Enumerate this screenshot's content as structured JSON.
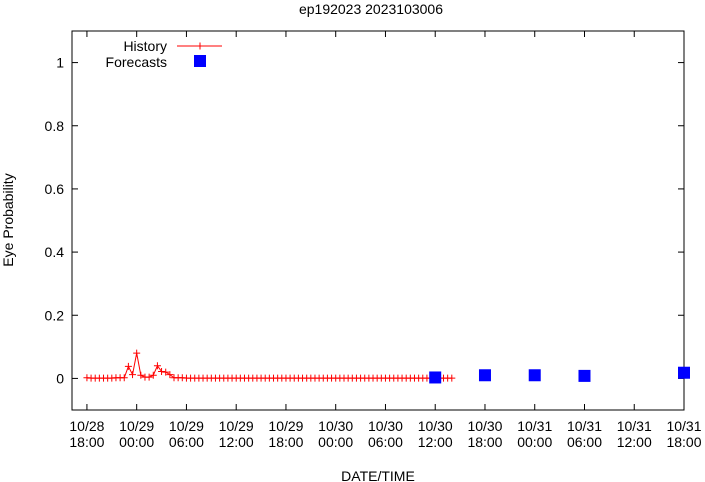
{
  "chart_data": {
    "type": "scatter",
    "title": "ep192023 2023103006",
    "xlabel": "DATE/TIME",
    "ylabel": "Eye Probability",
    "x_unit": "hours since 10/28 18:00",
    "xlim": [
      -1.8,
      72
    ],
    "ylim": [
      -0.1,
      1.1
    ],
    "x_ticks": [
      {
        "x": 0,
        "line1": "10/28",
        "line2": "18:00"
      },
      {
        "x": 6,
        "line1": "10/29",
        "line2": "00:00"
      },
      {
        "x": 12,
        "line1": "10/29",
        "line2": "06:00"
      },
      {
        "x": 18,
        "line1": "10/29",
        "line2": "12:00"
      },
      {
        "x": 24,
        "line1": "10/29",
        "line2": "18:00"
      },
      {
        "x": 30,
        "line1": "10/30",
        "line2": "00:00"
      },
      {
        "x": 36,
        "line1": "10/30",
        "line2": "06:00"
      },
      {
        "x": 42,
        "line1": "10/30",
        "line2": "12:00"
      },
      {
        "x": 48,
        "line1": "10/30",
        "line2": "18:00"
      },
      {
        "x": 54,
        "line1": "10/31",
        "line2": "00:00"
      },
      {
        "x": 60,
        "line1": "10/31",
        "line2": "06:00"
      },
      {
        "x": 66,
        "line1": "10/31",
        "line2": "12:00"
      },
      {
        "x": 72,
        "line1": "10/31",
        "line2": "18:00"
      }
    ],
    "y_ticks": [
      {
        "v": 0,
        "label": "0"
      },
      {
        "v": 0.2,
        "label": "0.2"
      },
      {
        "v": 0.4,
        "label": "0.4"
      },
      {
        "v": 0.6,
        "label": "0.6"
      },
      {
        "v": 0.8,
        "label": "0.8"
      },
      {
        "v": 1,
        "label": "1"
      }
    ],
    "legend": {
      "position": "top-left"
    },
    "series": [
      {
        "name": "History",
        "style": "line+cross",
        "color": "#ff0000",
        "segments": [
          {
            "x": [
              0.0,
              0.5,
              1.0,
              1.5,
              2.0,
              2.5,
              3.0,
              3.5,
              4.0,
              4.5,
              5.0,
              5.5,
              6.0,
              6.5,
              7.0,
              7.5,
              8.0,
              8.5,
              9.0,
              9.5,
              10.0,
              10.5,
              11.0,
              11.5,
              12.0,
              12.5,
              13.0,
              13.5,
              14.0,
              14.5,
              15.0,
              15.5,
              16.0,
              16.5,
              17.0,
              17.5,
              18.0,
              18.5,
              19.0,
              19.5,
              20.0,
              20.5,
              21.0,
              21.5,
              22.0,
              22.5,
              23.0,
              23.5,
              24.0,
              24.5,
              25.0,
              25.5,
              26.0,
              26.5,
              27.0,
              27.5,
              28.0,
              28.5,
              29.0,
              29.5,
              30.0,
              30.5,
              31.0,
              31.5,
              32.0,
              32.5,
              33.0,
              33.5,
              34.0,
              34.5,
              35.0,
              35.5,
              36.0,
              36.5,
              37.0,
              37.5,
              38.0,
              38.5,
              39.0,
              39.5,
              40.0,
              40.5,
              41.0,
              41.5,
              42.0,
              42.5,
              43.0,
              43.5,
              44.0
            ],
            "y": [
              0.002,
              0.001,
              0.001,
              0.001,
              0.001,
              0.001,
              0.001,
              0.002,
              0.002,
              0.002,
              0.038,
              0.012,
              0.08,
              0.01,
              0.004,
              0.004,
              0.01,
              0.04,
              0.022,
              0.02,
              0.012,
              0.002,
              0.002,
              0.002,
              0.001,
              0.001,
              0.001,
              0.001,
              0.001,
              0.001,
              0.001,
              0.001,
              0.001,
              0.001,
              0.001,
              0.001,
              0.001,
              0.001,
              0.001,
              0.001,
              0.001,
              0.001,
              0.001,
              0.001,
              0.001,
              0.001,
              0.001,
              0.001,
              0.001,
              0.001,
              0.001,
              0.001,
              0.001,
              0.001,
              0.001,
              0.001,
              0.001,
              0.001,
              0.001,
              0.001,
              0.001,
              0.001,
              0.001,
              0.001,
              0.001,
              0.001,
              0.001,
              0.001,
              0.001,
              0.001,
              0.001,
              0.001,
              0.001,
              0.001,
              0.001,
              0.001,
              0.001,
              0.001,
              0.001,
              0.001,
              0.001,
              0.001,
              0.001,
              0.001,
              0.001,
              0.001,
              0.001,
              0.001,
              0.001
            ]
          }
        ]
      },
      {
        "name": "Forecasts",
        "style": "square",
        "color": "#0000ff",
        "x": [
          42,
          48,
          54,
          60,
          72
        ],
        "y": [
          0.003,
          0.01,
          0.01,
          0.008,
          0.018
        ]
      }
    ]
  }
}
